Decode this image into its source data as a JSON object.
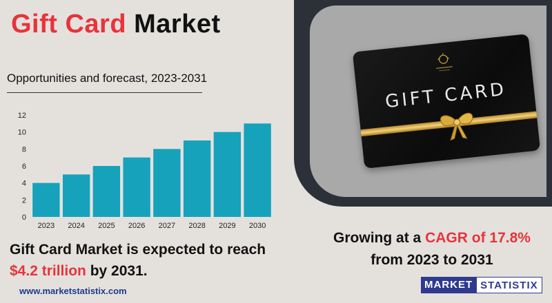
{
  "header": {
    "title_highlight": "Gift Card",
    "title_rest": "Market",
    "subtitle": "Opportunities and forecast, 2023-2031"
  },
  "headline": {
    "line1": "Gift Card Market is expected to reach",
    "value": "$4.2 trillion",
    "suffix": "by 2031."
  },
  "card": {
    "label": "GIFT CARD"
  },
  "cagr": {
    "prefix": "Growing at a",
    "highlight": "CAGR of 17.8%",
    "suffix": "from 2023 to 2031"
  },
  "footer": {
    "website": "www.marketstatistix.com",
    "brand_part1": "MARKET",
    "brand_part2": "STATISTIX"
  },
  "colors": {
    "accent_red": "#e8333a",
    "bar": "#16a2bb",
    "brand_blue": "#2f3a8f"
  },
  "chart_data": {
    "type": "bar",
    "categories": [
      "2023",
      "2024",
      "2025",
      "2026",
      "2027",
      "2028",
      "2029",
      "2030"
    ],
    "values": [
      4,
      5,
      6,
      7,
      8,
      9,
      10,
      11
    ],
    "yticks": [
      0,
      2,
      4,
      6,
      8,
      10,
      12
    ],
    "ylim": [
      0,
      12
    ],
    "grid": false
  }
}
